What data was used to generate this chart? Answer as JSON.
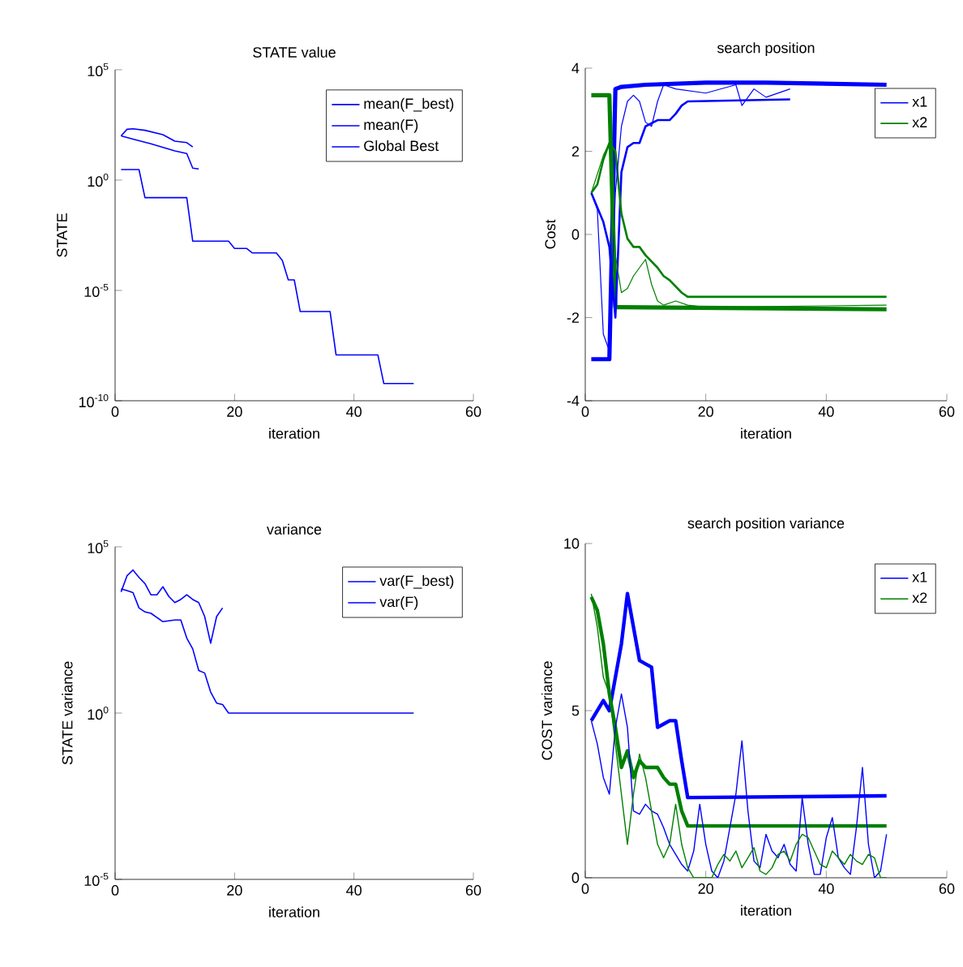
{
  "chart_data": [
    {
      "type": "line",
      "title": "STATE value",
      "xlabel": "iteration",
      "ylabel": "STATE",
      "log": "y",
      "legend": "top right",
      "xlim": [
        0,
        60
      ],
      "xticks": [
        0,
        20,
        40,
        60
      ],
      "ylim": [
        1e-10,
        100000
      ],
      "yticks": [
        {
          "value": 1e-10,
          "label": "10$^{-10}$"
        },
        {
          "value": 1e-05,
          "label": "10$^{-5}$"
        },
        {
          "value": 1,
          "label": "10$^{0}$"
        },
        {
          "value": 100000,
          "label": "10$^{5}$"
        }
      ],
      "series": [
        {
          "name": "mean(F_best)",
          "color": "#0000ff",
          "x": [
            1,
            3,
            6,
            10,
            12,
            13,
            14
          ],
          "values": [
            100,
            72,
            44,
            21,
            16,
            3.5,
            3.2
          ]
        },
        {
          "name": "mean(F)",
          "color": "#0000ff",
          "x": [
            1,
            2,
            3,
            5,
            8,
            10,
            12,
            13
          ],
          "values": [
            100,
            200,
            210,
            180,
            115,
            58,
            50,
            32
          ]
        },
        {
          "name": "Global Best",
          "color": "#0000ff",
          "x": [
            1,
            4,
            5,
            12,
            13,
            19,
            20,
            22,
            23,
            27,
            28,
            29,
            30,
            31,
            36,
            37,
            44,
            45,
            50
          ],
          "values": [
            3,
            3,
            0.16,
            0.16,
            0.0017,
            0.0017,
            0.0008,
            0.0008,
            0.0005,
            0.0005,
            0.00023,
            3e-05,
            3e-05,
            1.1e-06,
            1.1e-06,
            1.2e-08,
            1.2e-08,
            6e-10,
            6e-10
          ]
        }
      ]
    },
    {
      "type": "line",
      "title": "search position",
      "xlabel": "iteration",
      "ylabel": "Cost",
      "legend": "top right",
      "xlim": [
        0,
        60
      ],
      "xticks": [
        0,
        20,
        40,
        60
      ],
      "ylim": [
        -4,
        4
      ],
      "yticks": [
        -4,
        -2,
        0,
        2,
        4
      ],
      "series": [
        {
          "name": "x1",
          "color": "#0000ff",
          "x": [
            1,
            4,
            5,
            6,
            10,
            20,
            30,
            50
          ],
          "values": [
            -3,
            -3,
            3.5,
            3.55,
            3.6,
            3.65,
            3.65,
            3.6
          ]
        },
        {
          "name": "x2",
          "color": "#008000",
          "x": [
            1,
            4,
            5,
            50
          ],
          "values": [
            3.35,
            3.35,
            -1.75,
            -1.8
          ]
        },
        {
          "color": "#0000ff",
          "x": [
            1,
            3,
            4,
            5,
            6,
            7,
            8,
            9,
            10,
            12,
            14,
            15,
            16,
            17,
            34
          ],
          "values": [
            1,
            0.3,
            -0.3,
            -2,
            1.5,
            2.1,
            2.2,
            2.2,
            2.6,
            2.75,
            2.75,
            2.9,
            3.1,
            3.2,
            3.25
          ]
        },
        {
          "color": "#008000",
          "x": [
            1,
            2,
            3,
            4,
            5,
            6,
            7,
            8,
            9,
            10,
            12,
            13,
            14,
            16,
            17,
            25,
            50
          ],
          "values": [
            1,
            1.2,
            1.8,
            2.2,
            2,
            0.5,
            -0.1,
            -0.3,
            -0.3,
            -0.5,
            -0.8,
            -1,
            -1.1,
            -1.4,
            -1.5,
            -1.5,
            -1.5
          ]
        },
        {
          "color": "#0000ff",
          "x": [
            1,
            2,
            3,
            4,
            5,
            6,
            7,
            8,
            9,
            10,
            11,
            12,
            13,
            15,
            20,
            25,
            26,
            28,
            30,
            34
          ],
          "values": [
            1,
            0.6,
            -2.4,
            -2.8,
            1,
            2.6,
            3.2,
            3.35,
            3.2,
            2.7,
            2.6,
            3.2,
            3.6,
            3.5,
            3.4,
            3.6,
            3.1,
            3.5,
            3.3,
            3.5
          ]
        },
        {
          "color": "#008000",
          "x": [
            1,
            3,
            4,
            5,
            6,
            7,
            8,
            9,
            10,
            11,
            12,
            13,
            15,
            17,
            20,
            50
          ],
          "values": [
            1,
            1.9,
            2.2,
            -0.5,
            -1.4,
            -1.3,
            -1,
            -0.8,
            -0.6,
            -1.2,
            -1.6,
            -1.7,
            -1.6,
            -1.7,
            -1.75,
            -1.7
          ]
        }
      ]
    },
    {
      "type": "line",
      "title": "variance",
      "xlabel": "iteration",
      "ylabel": "STATE variance",
      "log": "y",
      "legend": "top right",
      "xlim": [
        0,
        60
      ],
      "xticks": [
        0,
        20,
        40,
        60
      ],
      "ylim": [
        1e-05,
        100000
      ],
      "yticks": [
        {
          "value": 1e-05,
          "label": "10$^{-5}$"
        },
        {
          "value": 1,
          "label": "10$^{0}$"
        },
        {
          "value": 100000,
          "label": "10$^{5}$"
        }
      ],
      "series": [
        {
          "name": "var(F_best)",
          "color": "#0000ff",
          "x": [
            1,
            2,
            3,
            4,
            5,
            6,
            8,
            10,
            11,
            12,
            13,
            14,
            15,
            16,
            17,
            18,
            19,
            50
          ],
          "values": [
            5400,
            4800,
            4200,
            1450,
            1100,
            1000,
            560,
            630,
            630,
            180,
            85,
            19,
            16,
            4.3,
            2,
            1.8,
            1,
            1
          ]
        },
        {
          "name": "var(F)",
          "color": "#0000ff",
          "x": [
            1,
            2,
            3,
            4,
            5,
            6,
            7,
            8,
            9,
            10,
            11,
            12,
            13,
            14,
            15,
            16,
            17,
            18
          ],
          "values": [
            4400,
            13500,
            20000,
            12000,
            7800,
            3600,
            3600,
            6300,
            3200,
            2100,
            2600,
            3600,
            2600,
            2100,
            800,
            126,
            800,
            1450
          ]
        }
      ]
    },
    {
      "type": "line",
      "title": "search position variance",
      "xlabel": "iteration",
      "ylabel": "COST variance",
      "legend": "top right",
      "xlim": [
        0,
        60
      ],
      "xticks": [
        0,
        20,
        40,
        60
      ],
      "ylim": [
        0,
        10
      ],
      "yticks": [
        0,
        5,
        10
      ],
      "series": [
        {
          "name": "x1",
          "color": "#0000ff",
          "x": [
            1,
            2,
            3,
            4,
            5,
            6,
            7,
            8,
            9,
            10,
            11,
            12,
            13,
            14,
            15,
            16,
            17,
            50
          ],
          "values": [
            4.7,
            5,
            5.3,
            5,
            6,
            7,
            8.5,
            7.5,
            6.5,
            6.4,
            6.3,
            4.5,
            4.6,
            4.7,
            4.7,
            3.5,
            2.4,
            2.45
          ]
        },
        {
          "name": "x2",
          "color": "#008000",
          "x": [
            1,
            2,
            3,
            4,
            5,
            6,
            7,
            8,
            9,
            10,
            11,
            12,
            13,
            14,
            15,
            16,
            17,
            50
          ],
          "values": [
            8.4,
            8,
            7,
            5.5,
            4.5,
            3.3,
            3.8,
            3,
            3.5,
            3.3,
            3.3,
            3.3,
            3,
            2.8,
            2.8,
            2,
            1.55,
            1.55
          ]
        },
        {
          "color": "#0000ff",
          "x": [
            1,
            2,
            3,
            4,
            5,
            6,
            7,
            8,
            9,
            10,
            11,
            12,
            13,
            14,
            15,
            16,
            17,
            18,
            19,
            20,
            21,
            22,
            23,
            24,
            25,
            26,
            27,
            28,
            29,
            30,
            31,
            32,
            33,
            34,
            35,
            36,
            37,
            38,
            39,
            40,
            41,
            42,
            43,
            44,
            45,
            46,
            47,
            48,
            49,
            50
          ],
          "values": [
            4.7,
            4,
            3,
            2.5,
            4.5,
            5.5,
            4.5,
            2,
            1.9,
            2.2,
            2,
            1.9,
            1.5,
            1,
            0.7,
            0.4,
            0.2,
            0.8,
            2.2,
            1,
            0.2,
            0,
            0.5,
            1.5,
            2.5,
            4.1,
            2,
            0.5,
            0.3,
            1.3,
            0.8,
            0.6,
            1,
            0.4,
            0.2,
            2.4,
            1,
            0.1,
            0.1,
            1.2,
            1.8,
            0.6,
            0.3,
            0.1,
            1.5,
            3.3,
            1,
            0,
            0.2,
            1.3
          ]
        },
        {
          "color": "#008000",
          "x": [
            1,
            2,
            3,
            4,
            5,
            6,
            7,
            8,
            9,
            10,
            11,
            12,
            13,
            14,
            15,
            16,
            17,
            18,
            19,
            20,
            21,
            22,
            23,
            24,
            25,
            26,
            27,
            28,
            29,
            30,
            31,
            32,
            33,
            34,
            35,
            36,
            37,
            38,
            39,
            40,
            41,
            42,
            43,
            44,
            45,
            46,
            47,
            48,
            49,
            50
          ],
          "values": [
            8.5,
            7.5,
            6,
            5.5,
            4,
            2.5,
            1,
            2.5,
            3.7,
            3,
            2,
            1,
            0.6,
            1,
            2.2,
            1,
            0.3,
            0,
            0,
            0,
            0,
            0.4,
            0.7,
            0.5,
            0.8,
            0.3,
            0.6,
            0.9,
            0.2,
            0.1,
            0.3,
            0.7,
            0.8,
            0.5,
            1,
            1.3,
            1.2,
            0.8,
            0.4,
            0.3,
            0.8,
            0.6,
            0.4,
            0.7,
            0.5,
            0.4,
            0.7,
            0.6,
            0,
            0
          ]
        }
      ]
    }
  ]
}
